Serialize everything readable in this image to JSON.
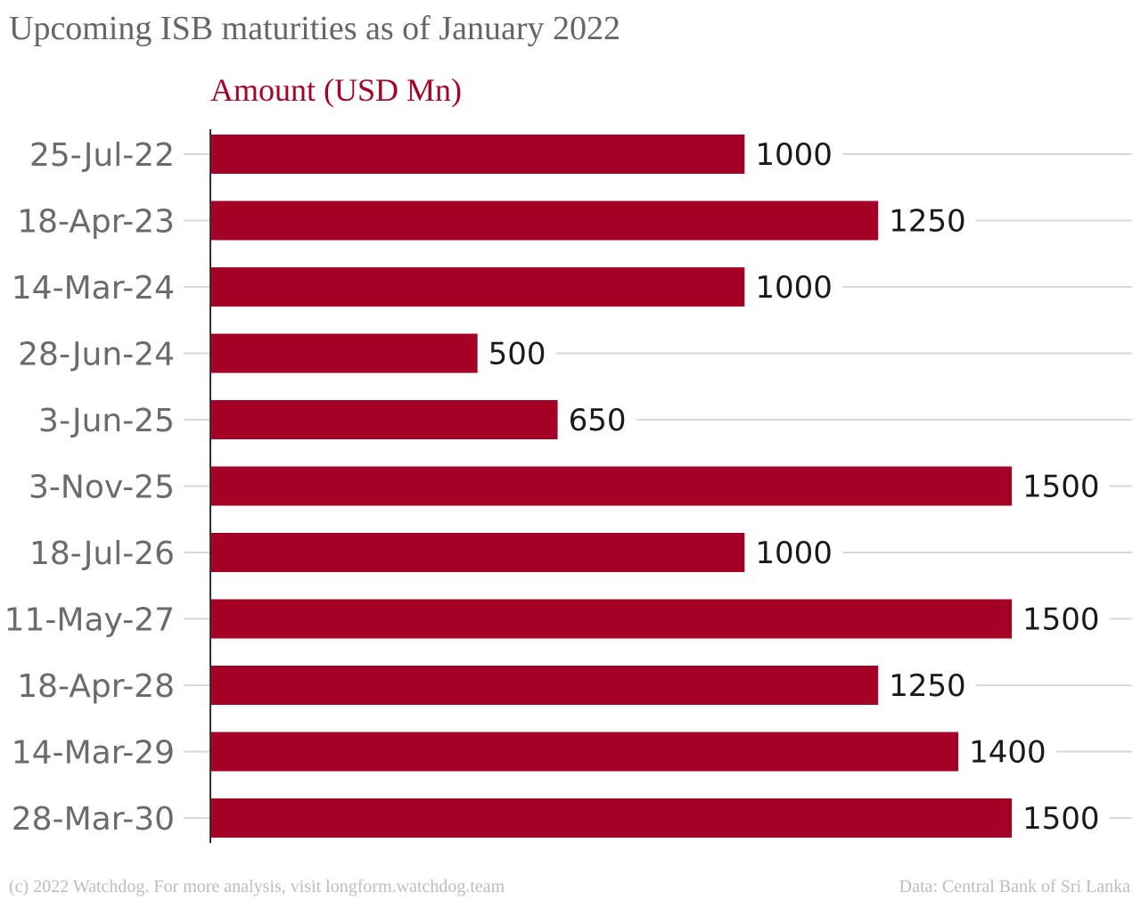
{
  "colors": {
    "bar": "#a50026",
    "accent_text": "#a50026",
    "grid": "#d9d9d9",
    "axis": "#333333",
    "title": "#666666",
    "footer": "#bdbdbd"
  },
  "header": {
    "title": "Upcoming ISB maturities as of January 2022",
    "legend_label": "Amount (USD Mn)"
  },
  "footer": {
    "credit": "(c) 2022 Watchdog. For more analysis, visit longform.watchdog.team",
    "source": "Data: Central Bank of Sri Lanka"
  },
  "chart_data": {
    "type": "bar",
    "orientation": "horizontal",
    "title": "Upcoming ISB maturities as of January 2022",
    "xlabel": "",
    "ylabel": "",
    "categories": [
      "25-Jul-22",
      "18-Apr-23",
      "14-Mar-24",
      "28-Jun-24",
      "3-Jun-25",
      "3-Nov-25",
      "18-Jul-26",
      "11-May-27",
      "18-Apr-28",
      "14-Mar-29",
      "28-Mar-30"
    ],
    "series": [
      {
        "name": "Amount (USD Mn)",
        "values": [
          1000,
          1250,
          1000,
          500,
          650,
          1500,
          1000,
          1500,
          1250,
          1400,
          1500
        ]
      }
    ],
    "xlim": [
      0,
      1500
    ],
    "grid": true,
    "legend_position": "top-left",
    "data_labels": true
  }
}
